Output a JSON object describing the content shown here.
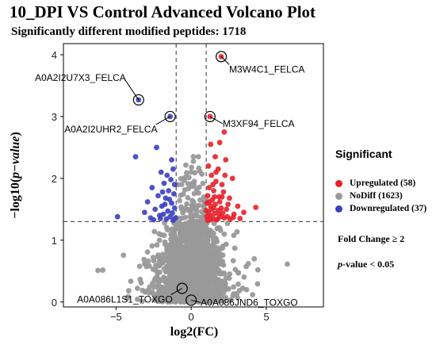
{
  "header": {
    "title": "10_DPI VS Control Advanced Volcano Plot",
    "subtitle": "Significantly different modified peptides: 1718"
  },
  "legend": {
    "title": "Significant",
    "items": [
      {
        "label": "Upregulated (58)",
        "color": "#e8202a"
      },
      {
        "label": "NoDiff (1623)",
        "color": "#999999"
      },
      {
        "label": "Downregulated (37)",
        "color": "#3b3fbf"
      }
    ]
  },
  "criteria": {
    "fold_change": "Fold Change ≥ 2",
    "p_italic": "p",
    "p_rest": "-value < 0.05"
  },
  "chart_data": {
    "type": "scatter",
    "xlabel": "log2(FC)",
    "ylabel_prefix": "−log10(",
    "ylabel_italic": "p−value",
    "ylabel_suffix": ")",
    "xlim": [
      -8.5,
      8.8
    ],
    "ylim": [
      -0.08,
      4.18
    ],
    "xticks": [
      -5,
      0,
      5
    ],
    "yticks": [
      0,
      1,
      2,
      3,
      4
    ],
    "thresholds": {
      "x": [
        -1,
        1
      ],
      "y": 1.301
    },
    "counts": {
      "Upregulated": 58,
      "NoDiff": 1623,
      "Downregulated": 37
    },
    "series": [
      {
        "name": "Upregulated",
        "color": "#e8202a",
        "points": [
          [
            2.0,
            3.97
          ],
          [
            1.25,
            3.0
          ],
          [
            2.2,
            2.75
          ],
          [
            1.3,
            2.55
          ],
          [
            1.9,
            2.58
          ],
          [
            1.6,
            2.35
          ],
          [
            2.3,
            2.3
          ],
          [
            1.15,
            2.2
          ],
          [
            1.8,
            2.15
          ],
          [
            1.35,
            2.05
          ],
          [
            1.65,
            1.95
          ],
          [
            2.05,
            1.9
          ],
          [
            1.2,
            1.85
          ],
          [
            2.75,
            2.0
          ],
          [
            1.5,
            1.8
          ],
          [
            2.15,
            1.78
          ],
          [
            1.1,
            1.72
          ],
          [
            1.85,
            1.7
          ],
          [
            1.4,
            1.65
          ],
          [
            2.55,
            1.68
          ],
          [
            4.3,
            1.53
          ],
          [
            1.05,
            1.6
          ],
          [
            1.6,
            1.58
          ],
          [
            1.3,
            1.55
          ],
          [
            2.0,
            1.52
          ],
          [
            1.8,
            1.48
          ],
          [
            2.35,
            1.5
          ],
          [
            1.15,
            1.45
          ],
          [
            1.55,
            1.43
          ],
          [
            2.85,
            1.42
          ],
          [
            1.25,
            1.4
          ],
          [
            1.95,
            1.38
          ],
          [
            3.1,
            1.55
          ],
          [
            2.2,
            1.36
          ],
          [
            1.45,
            1.35
          ],
          [
            1.7,
            1.33
          ],
          [
            2.6,
            1.34
          ],
          [
            1.1,
            1.32
          ],
          [
            3.5,
            1.45
          ],
          [
            1.35,
            1.5
          ],
          [
            1.9,
            1.62
          ],
          [
            1.05,
            1.38
          ],
          [
            2.45,
            1.58
          ],
          [
            1.55,
            1.7
          ],
          [
            2.1,
            1.44
          ],
          [
            1.75,
            1.34
          ],
          [
            1.2,
            1.62
          ],
          [
            2.8,
            1.37
          ],
          [
            1.45,
            1.9
          ],
          [
            1.65,
            2.1
          ],
          [
            1.0,
            1.48
          ],
          [
            2.25,
            2.05
          ],
          [
            3.25,
            1.35
          ],
          [
            1.3,
            1.33
          ],
          [
            1.85,
            1.42
          ],
          [
            2.05,
            1.7
          ],
          [
            1.5,
            1.52
          ],
          [
            2.4,
            1.38
          ]
        ]
      },
      {
        "name": "Downregulated",
        "color": "#3b3fbf",
        "points": [
          [
            -3.5,
            3.27
          ],
          [
            -1.4,
            3.0
          ],
          [
            -2.3,
            2.5
          ],
          [
            -3.7,
            2.35
          ],
          [
            -1.2,
            2.15
          ],
          [
            -2.0,
            2.1
          ],
          [
            -1.6,
            2.05
          ],
          [
            -1.35,
            1.98
          ],
          [
            -1.8,
            1.92
          ],
          [
            -2.6,
            1.85
          ],
          [
            -1.5,
            1.8
          ],
          [
            -1.15,
            1.75
          ],
          [
            -2.2,
            1.72
          ],
          [
            -1.7,
            1.68
          ],
          [
            -2.9,
            1.62
          ],
          [
            -1.3,
            1.6
          ],
          [
            -1.95,
            1.55
          ],
          [
            -1.1,
            1.52
          ],
          [
            -2.4,
            1.5
          ],
          [
            -1.55,
            1.47
          ],
          [
            -4.9,
            1.38
          ],
          [
            -1.25,
            1.44
          ],
          [
            -1.85,
            1.42
          ],
          [
            -2.1,
            1.4
          ],
          [
            -1.4,
            1.38
          ],
          [
            -1.05,
            1.36
          ],
          [
            -1.65,
            1.34
          ],
          [
            -2.5,
            1.33
          ],
          [
            -1.2,
            1.32
          ],
          [
            -3.1,
            1.45
          ],
          [
            -1.75,
            1.58
          ],
          [
            -1.45,
            1.66
          ],
          [
            -2.7,
            1.36
          ],
          [
            -1.1,
            1.9
          ],
          [
            -1.9,
            1.78
          ],
          [
            -1.3,
            2.3
          ],
          [
            -2.05,
            1.35
          ]
        ]
      }
    ],
    "nodiff_scatter": {
      "color": "#999999",
      "n": 1623,
      "seed": 7
    },
    "annotations": [
      {
        "label": "M3W4C1_FELCA",
        "x": 2.0,
        "y": 3.97
      },
      {
        "label": "A0A2I2U7X3_FELCA",
        "x": -3.5,
        "y": 3.27
      },
      {
        "label": "A0A2I2UHR2_FELCA",
        "x": -1.4,
        "y": 3.0
      },
      {
        "label": "M3XF94_FELCA",
        "x": 1.25,
        "y": 3.0
      },
      {
        "label": "A0A086L1S1_TOXGO",
        "x": -0.6,
        "y": 0.22
      },
      {
        "label": "A0A086JND6_TOXGO",
        "x": 0.0,
        "y": 0.03
      }
    ]
  }
}
